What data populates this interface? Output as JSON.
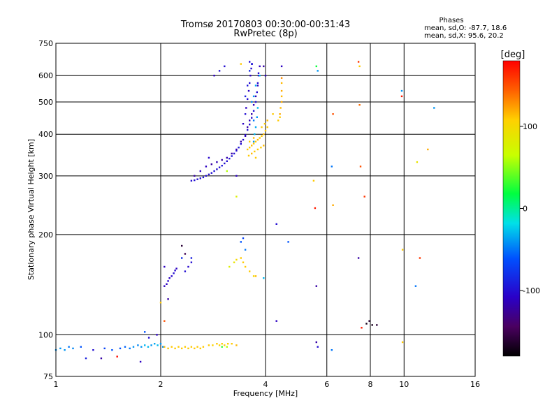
{
  "chart_data": {
    "type": "scatter",
    "title": "Tromsø 20170803 00:30:00-00:31:43",
    "subtitle": "RwPretec (8p)",
    "xlabel": "Frequency [MHz]",
    "ylabel": "Stationary phase Virtual Height [km]",
    "xscale": "log",
    "yscale": "log",
    "xlim": [
      1,
      16
    ],
    "ylim": [
      75,
      750
    ],
    "x_ticks": [
      1,
      2,
      4,
      6,
      8,
      10,
      16
    ],
    "x_tick_labels": [
      "1",
      "2",
      "4",
      "6",
      "8",
      "10",
      "16"
    ],
    "y_ticks": [
      75,
      100,
      200,
      300,
      400,
      500,
      600,
      750
    ],
    "y_tick_labels": [
      "75",
      "100",
      "200",
      "300",
      "400",
      "500",
      "600",
      "750"
    ],
    "grid": true,
    "phase_box": {
      "heading": "Phases",
      "line_o": "mean, sd,O: -87.7, 18.6",
      "line_x": "mean, sd,X:  95.6, 20.2"
    },
    "colorbar": {
      "label": "[deg]",
      "range": [
        -180,
        180
      ],
      "ticks": [
        100,
        0,
        -100
      ],
      "tick_labels": [
        "100",
        "0",
        "-100"
      ]
    },
    "points": [
      [
        1.0,
        90,
        -40
      ],
      [
        1.03,
        91,
        -40
      ],
      [
        1.06,
        90,
        -40
      ],
      [
        1.09,
        92,
        -50
      ],
      [
        1.12,
        91,
        -45
      ],
      [
        1.18,
        92,
        -60
      ],
      [
        1.22,
        85,
        -90
      ],
      [
        1.28,
        90,
        -100
      ],
      [
        1.38,
        91,
        -70
      ],
      [
        1.45,
        90,
        -60
      ],
      [
        1.53,
        91,
        -60
      ],
      [
        1.58,
        92,
        -55
      ],
      [
        1.63,
        91,
        -50
      ],
      [
        1.67,
        92,
        -40
      ],
      [
        1.72,
        93,
        -45
      ],
      [
        1.76,
        92,
        -40
      ],
      [
        1.8,
        93,
        -30
      ],
      [
        1.84,
        92,
        -30
      ],
      [
        1.88,
        93,
        -40
      ],
      [
        1.92,
        94,
        -35
      ],
      [
        1.96,
        93,
        -30
      ],
      [
        2.0,
        94,
        -40
      ],
      [
        2.03,
        92,
        -40
      ],
      [
        1.35,
        85,
        -120
      ],
      [
        1.5,
        86,
        175
      ],
      [
        1.75,
        83,
        -110
      ],
      [
        1.8,
        102,
        -60
      ],
      [
        1.85,
        98,
        -100
      ],
      [
        1.95,
        100,
        -110
      ],
      [
        2.05,
        92,
        115
      ],
      [
        2.1,
        91,
        110
      ],
      [
        2.15,
        92,
        110
      ],
      [
        2.2,
        91,
        110
      ],
      [
        2.25,
        92,
        110
      ],
      [
        2.3,
        91,
        110
      ],
      [
        2.35,
        92,
        110
      ],
      [
        2.4,
        91,
        110
      ],
      [
        2.45,
        92,
        110
      ],
      [
        2.5,
        91,
        110
      ],
      [
        2.55,
        92,
        110
      ],
      [
        2.6,
        91,
        110
      ],
      [
        2.65,
        92,
        110
      ],
      [
        2.75,
        93,
        110
      ],
      [
        2.82,
        93,
        105
      ],
      [
        2.9,
        94,
        110
      ],
      [
        2.95,
        93,
        105
      ],
      [
        3.0,
        94,
        110
      ],
      [
        3.05,
        93,
        110
      ],
      [
        3.12,
        94,
        110
      ],
      [
        3.2,
        94,
        110
      ],
      [
        3.3,
        93,
        115
      ],
      [
        3.1,
        92,
        60
      ],
      [
        3.0,
        92,
        30
      ],
      [
        2.05,
        140,
        -110
      ],
      [
        2.08,
        142,
        -110
      ],
      [
        2.1,
        145,
        -105
      ],
      [
        2.12,
        148,
        -110
      ],
      [
        2.15,
        150,
        -105
      ],
      [
        2.18,
        153,
        -100
      ],
      [
        2.2,
        156,
        -105
      ],
      [
        2.22,
        158,
        -110
      ],
      [
        2.05,
        160,
        -110
      ],
      [
        2.35,
        155,
        -100
      ],
      [
        2.4,
        160,
        -105
      ],
      [
        2.45,
        165,
        -100
      ],
      [
        2.3,
        185,
        -160
      ],
      [
        2.35,
        175,
        -150
      ],
      [
        2.0,
        125,
        110
      ],
      [
        2.1,
        128,
        -120
      ],
      [
        2.05,
        110,
        150
      ],
      [
        2.3,
        170,
        -80
      ],
      [
        2.45,
        170,
        -90
      ],
      [
        3.15,
        160,
        80
      ],
      [
        3.25,
        165,
        90
      ],
      [
        3.3,
        168,
        100
      ],
      [
        3.4,
        170,
        110
      ],
      [
        3.45,
        165,
        110
      ],
      [
        3.5,
        160,
        110
      ],
      [
        3.6,
        155,
        110
      ],
      [
        3.75,
        150,
        115
      ],
      [
        3.95,
        148,
        -30
      ],
      [
        3.5,
        180,
        -50
      ],
      [
        3.4,
        190,
        -60
      ],
      [
        3.45,
        195,
        -70
      ],
      [
        3.1,
        310,
        60
      ],
      [
        3.3,
        300,
        -110
      ],
      [
        3.3,
        260,
        80
      ],
      [
        3.7,
        150,
        100
      ],
      [
        4.3,
        110,
        -110
      ],
      [
        4.3,
        215,
        -100
      ],
      [
        4.65,
        190,
        -60
      ],
      [
        5.6,
        140,
        -120
      ],
      [
        2.45,
        290,
        -100
      ],
      [
        2.5,
        291,
        -100
      ],
      [
        2.55,
        293,
        -100
      ],
      [
        2.6,
        295,
        -100
      ],
      [
        2.65,
        297,
        -95
      ],
      [
        2.7,
        300,
        -100
      ],
      [
        2.75,
        303,
        -100
      ],
      [
        2.8,
        306,
        -100
      ],
      [
        2.85,
        310,
        -95
      ],
      [
        2.9,
        314,
        -100
      ],
      [
        2.95,
        318,
        -100
      ],
      [
        3.0,
        322,
        -95
      ],
      [
        3.05,
        327,
        -100
      ],
      [
        3.1,
        332,
        -100
      ],
      [
        3.15,
        338,
        -100
      ],
      [
        3.2,
        344,
        -95
      ],
      [
        3.25,
        350,
        -100
      ],
      [
        3.3,
        357,
        -100
      ],
      [
        3.35,
        365,
        -95
      ],
      [
        3.4,
        374,
        -100
      ],
      [
        3.45,
        385,
        -100
      ],
      [
        3.5,
        398,
        -100
      ],
      [
        3.55,
        412,
        -100
      ],
      [
        3.6,
        428,
        -100
      ],
      [
        3.65,
        448,
        -100
      ],
      [
        3.7,
        470,
        -95
      ],
      [
        3.75,
        500,
        -100
      ],
      [
        3.78,
        535,
        -100
      ],
      [
        3.8,
        570,
        -100
      ],
      [
        3.82,
        610,
        -100
      ],
      [
        2.7,
        320,
        -110
      ],
      [
        2.8,
        325,
        -120
      ],
      [
        2.9,
        330,
        -115
      ],
      [
        3.0,
        335,
        -120
      ],
      [
        3.1,
        340,
        -115
      ],
      [
        3.2,
        350,
        -120
      ],
      [
        3.3,
        360,
        -115
      ],
      [
        3.4,
        380,
        -120
      ],
      [
        3.5,
        395,
        -115
      ],
      [
        3.55,
        420,
        -120
      ],
      [
        3.6,
        440,
        -115
      ],
      [
        3.65,
        460,
        -120
      ],
      [
        3.7,
        490,
        -110
      ],
      [
        3.75,
        520,
        -115
      ],
      [
        3.8,
        560,
        -110
      ],
      [
        3.82,
        600,
        -110
      ],
      [
        3.85,
        640,
        -110
      ],
      [
        2.6,
        310,
        -110
      ],
      [
        2.5,
        300,
        -120
      ],
      [
        2.75,
        340,
        -105
      ],
      [
        3.45,
        430,
        -110
      ],
      [
        3.5,
        460,
        -100
      ],
      [
        3.52,
        480,
        -110
      ],
      [
        3.55,
        510,
        -100
      ],
      [
        3.58,
        540,
        -110
      ],
      [
        3.6,
        570,
        -100
      ],
      [
        3.62,
        600,
        -110
      ],
      [
        3.64,
        630,
        -100
      ],
      [
        3.66,
        650,
        -110
      ],
      [
        3.5,
        520,
        -90
      ],
      [
        3.55,
        560,
        -95
      ],
      [
        3.6,
        620,
        -85
      ],
      [
        3.65,
        650,
        -90
      ],
      [
        3.7,
        380,
        -40
      ],
      [
        3.72,
        400,
        -30
      ],
      [
        3.75,
        420,
        -35
      ],
      [
        3.78,
        450,
        -40
      ],
      [
        3.8,
        480,
        -30
      ],
      [
        3.7,
        520,
        -40
      ],
      [
        3.75,
        560,
        -35
      ],
      [
        3.85,
        600,
        -30
      ],
      [
        3.7,
        440,
        -50
      ],
      [
        3.65,
        500,
        -45
      ],
      [
        3.55,
        360,
        110
      ],
      [
        3.6,
        365,
        110
      ],
      [
        3.65,
        370,
        115
      ],
      [
        3.7,
        375,
        110
      ],
      [
        3.75,
        380,
        110
      ],
      [
        3.8,
        385,
        115
      ],
      [
        3.85,
        390,
        110
      ],
      [
        3.9,
        395,
        110
      ],
      [
        3.95,
        400,
        115
      ],
      [
        4.0,
        410,
        110
      ],
      [
        4.05,
        420,
        110
      ],
      [
        3.58,
        345,
        110
      ],
      [
        3.65,
        350,
        115
      ],
      [
        3.72,
        355,
        110
      ],
      [
        3.8,
        360,
        110
      ],
      [
        3.88,
        365,
        110
      ],
      [
        3.95,
        370,
        115
      ],
      [
        3.6,
        380,
        110
      ],
      [
        3.7,
        390,
        115
      ],
      [
        3.9,
        420,
        110
      ],
      [
        3.98,
        430,
        110
      ],
      [
        4.05,
        440,
        115
      ],
      [
        3.75,
        340,
        110
      ],
      [
        4.4,
        460,
        120
      ],
      [
        4.42,
        480,
        115
      ],
      [
        4.45,
        500,
        120
      ],
      [
        4.45,
        520,
        115
      ],
      [
        4.45,
        540,
        120
      ],
      [
        4.4,
        450,
        110
      ],
      [
        4.35,
        440,
        110
      ],
      [
        4.2,
        460,
        110
      ],
      [
        4.45,
        570,
        115
      ],
      [
        4.45,
        590,
        130
      ],
      [
        4.45,
        640,
        -110
      ],
      [
        3.95,
        640,
        -120
      ],
      [
        4.0,
        600,
        -110
      ],
      [
        2.85,
        600,
        -110
      ],
      [
        2.95,
        620,
        -100
      ],
      [
        3.05,
        640,
        -100
      ],
      [
        3.4,
        650,
        110
      ],
      [
        3.6,
        660,
        -100
      ],
      [
        5.6,
        640,
        20
      ],
      [
        5.65,
        620,
        -40
      ],
      [
        5.5,
        290,
        110
      ],
      [
        5.55,
        240,
        170
      ],
      [
        6.25,
        460,
        150
      ],
      [
        6.2,
        320,
        -50
      ],
      [
        6.25,
        245,
        120
      ],
      [
        7.4,
        660,
        160
      ],
      [
        7.45,
        640,
        110
      ],
      [
        7.45,
        490,
        140
      ],
      [
        7.5,
        320,
        150
      ],
      [
        7.7,
        260,
        160
      ],
      [
        7.4,
        170,
        -120
      ],
      [
        7.55,
        105,
        170
      ],
      [
        7.8,
        108,
        -170
      ],
      [
        7.95,
        110,
        -160
      ],
      [
        8.1,
        107,
        -170
      ],
      [
        8.35,
        107,
        -160
      ],
      [
        9.85,
        540,
        -40
      ],
      [
        9.85,
        520,
        170
      ],
      [
        9.9,
        180,
        110
      ],
      [
        9.9,
        95,
        110
      ],
      [
        10.9,
        330,
        90
      ],
      [
        11.1,
        170,
        160
      ],
      [
        10.8,
        140,
        -50
      ],
      [
        11.7,
        360,
        120
      ],
      [
        12.2,
        480,
        -40
      ],
      [
        5.6,
        95,
        -120
      ],
      [
        5.65,
        92,
        -100
      ],
      [
        6.2,
        90,
        -50
      ]
    ]
  }
}
